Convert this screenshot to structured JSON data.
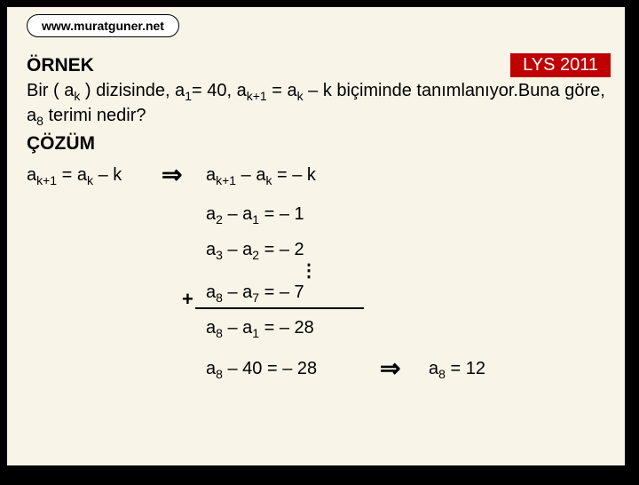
{
  "url": "www.muratguner.net",
  "badge": "LYS 2011",
  "ornek": "ÖRNEK",
  "cozum": "ÇÖZÜM",
  "question_p1": "Bir ( a",
  "question_p2": " ) dizisinde, a",
  "question_p3": "= 40, a",
  "question_p4": " = a",
  "question_p5": " – k   biçiminde tanımlanıyor.Buna göre, a",
  "question_p6": " terimi nedir?",
  "s_k": "k",
  "s_1": "1",
  "s_k1": "k+1",
  "s_8": "8",
  "s_2": "2",
  "s_3": "3",
  "s_7": "7",
  "l1_a": "a",
  "l1_eq": " = a",
  "l1_end": " – k",
  "arrow": "⇒",
  "e1_a": "a",
  "e1_b": " – a",
  "e1_c": " = – k",
  "e2_a": "a",
  "e2_b": " – a",
  "e2_c": " = – 1",
  "e3_a": "a",
  "e3_b": " – a",
  "e3_c": " = – 2",
  "vdots": "⋮",
  "e4_a": "a",
  "e4_b": " – a",
  "e4_c": " = – 7",
  "plus": "+",
  "e5_a": "a",
  "e5_b": " – a",
  "e5_c": " = – 28",
  "e6_a": "a",
  "e6_b": " – 40 = – 28",
  "ans_a": "a",
  "ans_b": " = 12",
  "colors": {
    "slide_bg": "#f8f5e8",
    "border": "#000000",
    "badge_bg": "#c00000",
    "badge_fg": "#ffffff"
  }
}
